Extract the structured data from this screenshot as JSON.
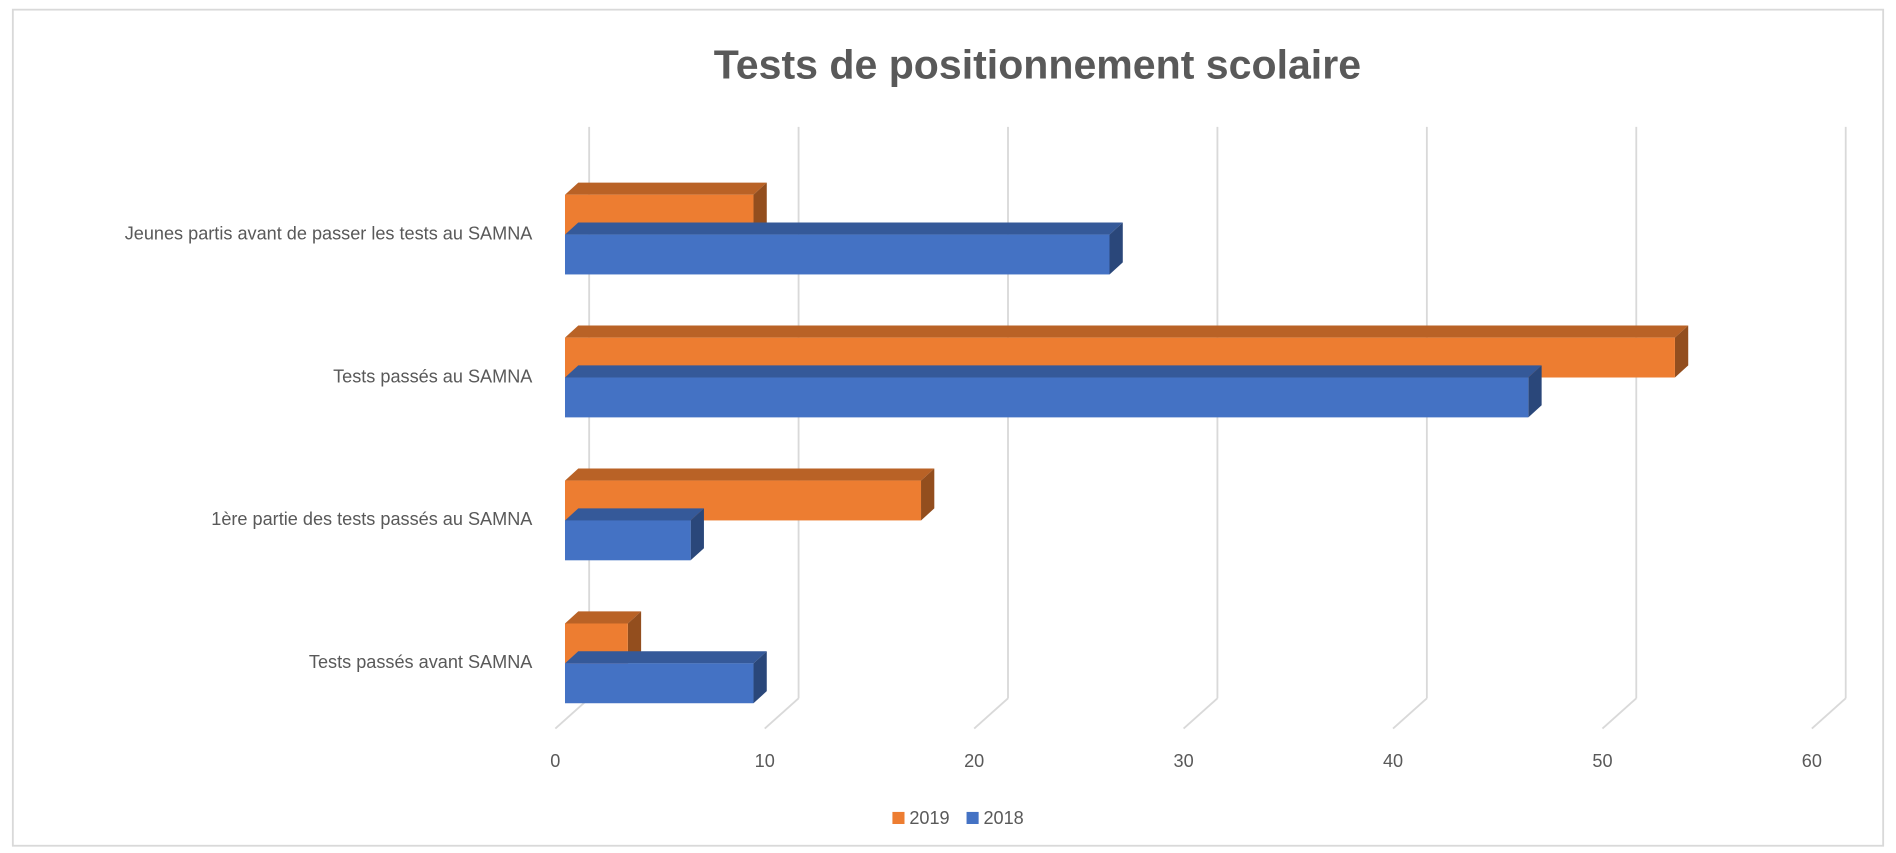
{
  "chart_data": {
    "type": "bar",
    "orientation": "horizontal",
    "title": "Tests de positionnement scolaire",
    "categories": [
      "Tests passés avant SAMNA",
      "1ère partie des tests passés au SAMNA",
      "Tests passés au SAMNA",
      "Jeunes partis avant de passer les tests au SAMNA"
    ],
    "series": [
      {
        "name": "2019",
        "color": "#ed7d31",
        "values": [
          3,
          17,
          53,
          9
        ]
      },
      {
        "name": "2018",
        "color": "#4472c4",
        "values": [
          9,
          6,
          46,
          26
        ]
      }
    ],
    "xlim": [
      0,
      60
    ],
    "xticks": [
      0,
      10,
      20,
      30,
      40,
      50,
      60
    ],
    "grid": true,
    "legend": "bottom"
  }
}
